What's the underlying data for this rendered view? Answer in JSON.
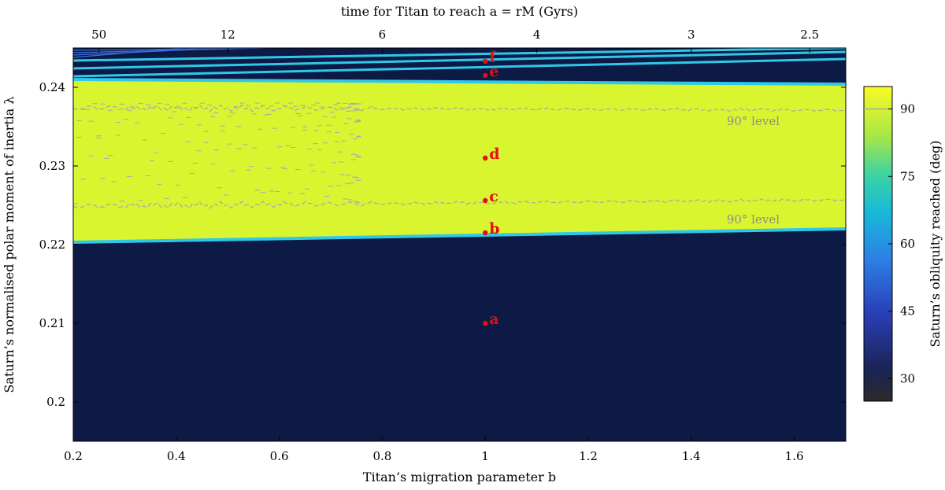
{
  "chart_data": {
    "type": "heatmap",
    "xlabel": "Titan’s migration parameter b",
    "xlabel_top": "time for Titan to reach a = rM (Gyrs)",
    "ylabel": "Saturn’s normalised polar moment of inertia λ",
    "colorbar_label": "Saturn’s obliquity reached (deg)",
    "xlim": [
      0.2,
      1.7
    ],
    "ylim": [
      0.195,
      0.245
    ],
    "x_ticks": [
      "0.2",
      "0.4",
      "0.6",
      "0.8",
      "1",
      "1.2",
      "1.4",
      "1.6"
    ],
    "y_ticks": [
      "0.2",
      "0.21",
      "0.22",
      "0.23",
      "0.24"
    ],
    "top_ticks": [
      {
        "label": "50",
        "b": 0.25
      },
      {
        "label": "12",
        "b": 0.5
      },
      {
        "label": "6",
        "b": 0.8
      },
      {
        "label": "4",
        "b": 1.1
      },
      {
        "label": "3",
        "b": 1.4
      },
      {
        "label": "2.5",
        "b": 1.63
      }
    ],
    "colorbar_ticks": [
      "30",
      "45",
      "60",
      "75",
      "90"
    ],
    "colorbar_range": [
      25,
      95
    ],
    "colorbar_line": 90,
    "resonance_band": {
      "lower": [
        [
          0.2,
          0.2205
        ],
        [
          1.7,
          0.2222
        ]
      ],
      "upper": [
        [
          0.2,
          0.2408
        ],
        [
          1.7,
          0.2402
        ]
      ],
      "obliquity": 92,
      "edge_obliquity": 70
    },
    "background_obliquity": 28,
    "upper_branches": [
      {
        "y0": 0.2424,
        "y1": 0.2445
      },
      {
        "y0": 0.2414,
        "y1": 0.2436
      },
      {
        "y0": 0.2434,
        "y1": 0.245
      }
    ],
    "level_curves": [
      {
        "label": "90° level",
        "y0": 0.2374,
        "y1": 0.2371,
        "label_b": 1.53
      },
      {
        "label": "90° level",
        "y0": 0.2249,
        "y1": 0.2257,
        "label_b": 1.53
      }
    ],
    "points": [
      {
        "label": "a",
        "b": 1.0,
        "lambda": 0.21
      },
      {
        "label": "b",
        "b": 1.0,
        "lambda": 0.2215
      },
      {
        "label": "c",
        "b": 1.0,
        "lambda": 0.2256
      },
      {
        "label": "d",
        "b": 1.0,
        "lambda": 0.231
      },
      {
        "label": "e",
        "b": 1.0,
        "lambda": 0.2415
      },
      {
        "label": "f",
        "b": 1.0,
        "lambda": 0.2433
      }
    ],
    "colors": {
      "background": "#0c1a45",
      "band": "#d8f530",
      "band_core": "#e2f61e",
      "edge": "#2fc8e8",
      "level_line": "#a9a9a9",
      "point": "#e01010",
      "axis": "#000000"
    }
  }
}
